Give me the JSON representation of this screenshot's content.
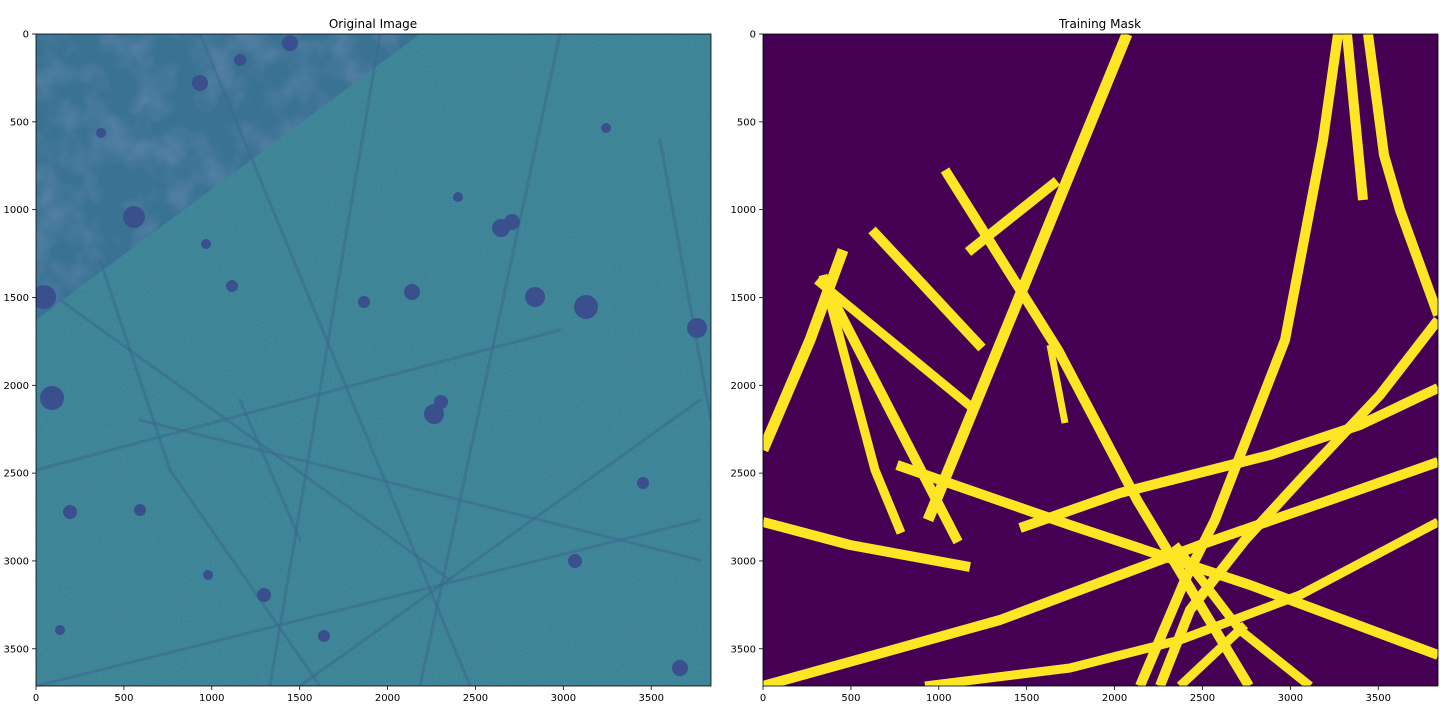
{
  "figure": {
    "left_panel": {
      "title": "Original Image",
      "colors": {
        "background": "#2e7b8e",
        "dark_blobs": "#3a4f8e",
        "filaments": "#3b6a8e"
      },
      "x_ticks": [
        "0",
        "500",
        "1000",
        "1500",
        "2000",
        "2500",
        "3000",
        "3500"
      ],
      "y_ticks": [
        "0",
        "500",
        "1000",
        "1500",
        "2000",
        "2500",
        "3000",
        "3500"
      ]
    },
    "right_panel": {
      "title": "Training Mask",
      "colors": {
        "background": "#440154",
        "mask": "#fde725"
      },
      "x_ticks": [
        "0",
        "500",
        "1000",
        "1500",
        "2000",
        "2500",
        "3000",
        "3500"
      ],
      "y_ticks": [
        "0",
        "500",
        "1000",
        "1500",
        "2000",
        "2500",
        "3000",
        "3500"
      ]
    }
  }
}
